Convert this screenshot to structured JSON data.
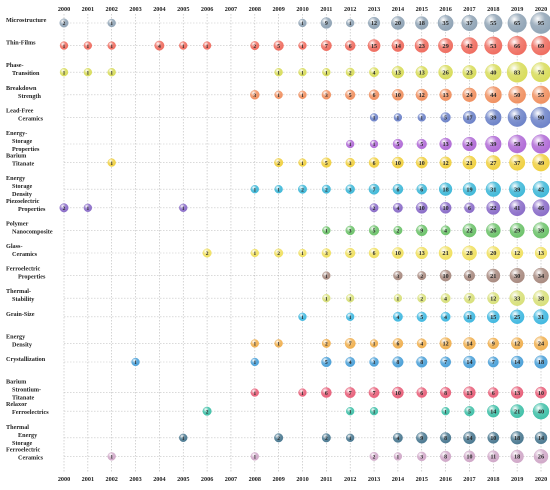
{
  "chart_data": {
    "type": "bubble-matrix",
    "title": "",
    "xlabel": "",
    "ylabel": "",
    "years": [
      "2000",
      "2001",
      "2002",
      "2003",
      "2004",
      "2005",
      "2006",
      "2007",
      "2008",
      "2009",
      "2010",
      "2011",
      "2012",
      "2013",
      "2014",
      "2015",
      "2016",
      "2017",
      "2018",
      "2019",
      "2020"
    ],
    "rows": [
      {
        "label": [
          "Microstructure"
        ],
        "color": "#8fa3b5",
        "values": {
          "2000": 2,
          "2002": 1,
          "2010": 1,
          "2011": 9,
          "2012": 1,
          "2013": 12,
          "2014": 20,
          "2015": 18,
          "2016": 35,
          "2017": 37,
          "2018": 55,
          "2019": 65,
          "2020": 95
        }
      },
      {
        "label": [
          "Thin-Films"
        ],
        "color": "#ef6c5f",
        "values": {
          "2000": 1,
          "2001": 1,
          "2002": 1,
          "2004": 4,
          "2005": 1,
          "2006": 1,
          "2008": 2,
          "2009": 5,
          "2010": 1,
          "2011": 7,
          "2012": 6,
          "2013": 15,
          "2014": 14,
          "2015": 23,
          "2016": 29,
          "2017": 42,
          "2018": 53,
          "2019": 66,
          "2020": 69
        }
      },
      {
        "label": [
          "Phase-",
          "Transition"
        ],
        "color": "#d8dc5a",
        "values": {
          "2000": 1,
          "2001": 1,
          "2002": 1,
          "2009": 1,
          "2010": 1,
          "2011": 1,
          "2012": 2,
          "2013": 4,
          "2014": 13,
          "2015": 13,
          "2016": 26,
          "2017": 23,
          "2018": 40,
          "2019": 83,
          "2020": 74
        }
      },
      {
        "label": [
          "Breakdown",
          "Strength"
        ],
        "color": "#f09060",
        "values": {
          "2008": 3,
          "2009": 1,
          "2010": 1,
          "2011": 3,
          "2012": 5,
          "2013": 6,
          "2014": 10,
          "2015": 12,
          "2016": 13,
          "2017": 24,
          "2018": 44,
          "2019": 50,
          "2020": 55
        }
      },
      {
        "label": [
          "Lead-Free",
          "Ceramics"
        ],
        "color": "#6c82c8",
        "values": {
          "2013": 1,
          "2014": 1,
          "2015": 1,
          "2016": 5,
          "2017": 17,
          "2018": 39,
          "2019": 63,
          "2020": 90
        }
      },
      {
        "label": [
          "Energy-",
          "Storage",
          "Properties"
        ],
        "color": "#b06ad6",
        "values": {
          "2012": 1,
          "2013": 1,
          "2014": 5,
          "2015": 5,
          "2016": 13,
          "2017": 24,
          "2018": 39,
          "2019": 58,
          "2020": 65
        }
      },
      {
        "label": [
          "Barium",
          "Titanate"
        ],
        "color": "#f0d040",
        "values": {
          "2002": 1,
          "2009": 2,
          "2010": 1,
          "2011": 5,
          "2012": 3,
          "2013": 6,
          "2014": 10,
          "2015": 10,
          "2016": 12,
          "2017": 21,
          "2018": 27,
          "2019": 37,
          "2020": 49
        }
      },
      {
        "label": [
          "Energy",
          "Storage",
          "Density"
        ],
        "color": "#3fb8d8",
        "values": {
          "2008": 1,
          "2009": 1,
          "2010": 2,
          "2011": 2,
          "2012": 3,
          "2013": 7,
          "2014": 6,
          "2015": 6,
          "2016": 18,
          "2017": 19,
          "2018": 31,
          "2019": 39,
          "2020": 42
        }
      },
      {
        "label": [
          "Piezoelectric",
          "Properties"
        ],
        "color": "#8a6cc8",
        "values": {
          "2000": 2,
          "2001": 1,
          "2005": 1,
          "2013": 2,
          "2014": 4,
          "2015": 10,
          "2016": 10,
          "2017": 6,
          "2018": 22,
          "2019": 41,
          "2020": 46
        }
      },
      {
        "label": [
          "Polymer",
          "Nanocomposite"
        ],
        "color": "#6cc26a",
        "values": {
          "2011": 1,
          "2012": 3,
          "2013": 5,
          "2014": 2,
          "2015": 9,
          "2016": 4,
          "2017": 22,
          "2018": 26,
          "2019": 29,
          "2020": 39
        }
      },
      {
        "label": [
          "Glass-",
          "Ceramics"
        ],
        "color": "#f0e060",
        "values": {
          "2006": 2,
          "2008": 1,
          "2009": 2,
          "2010": 1,
          "2011": 3,
          "2012": 5,
          "2013": 6,
          "2014": 10,
          "2015": 13,
          "2016": 21,
          "2017": 28,
          "2018": 20,
          "2019": 12,
          "2020": 13
        }
      },
      {
        "label": [
          "Ferroelectric",
          "Properties"
        ],
        "color": "#a88a80",
        "values": {
          "2011": 1,
          "2014": 3,
          "2015": 2,
          "2016": 10,
          "2017": 8,
          "2018": 21,
          "2019": 30,
          "2020": 34
        }
      },
      {
        "label": [
          "Thermal-",
          "Stability"
        ],
        "color": "#d8e07a",
        "values": {
          "2011": 1,
          "2012": 1,
          "2014": 1,
          "2015": 2,
          "2016": 4,
          "2017": 7,
          "2018": 12,
          "2019": 33,
          "2020": 38
        }
      },
      {
        "label": [
          "Grain-Size"
        ],
        "color": "#40b8e0",
        "values": {
          "2010": 1,
          "2012": 1,
          "2014": 4,
          "2015": 5,
          "2016": 4,
          "2017": 11,
          "2018": 15,
          "2019": 25,
          "2020": 31
        }
      },
      {
        "label": [
          "Energy",
          "Density"
        ],
        "color": "#f0b050",
        "values": {
          "2008": 1,
          "2009": 1,
          "2011": 2,
          "2012": 7,
          "2013": 1,
          "2014": 6,
          "2015": 4,
          "2016": 12,
          "2017": 14,
          "2018": 9,
          "2019": 12,
          "2020": 24
        }
      },
      {
        "label": [
          "Crystallization"
        ],
        "color": "#4aa0d8",
        "values": {
          "2003": 1,
          "2008": 1,
          "2011": 5,
          "2012": 4,
          "2013": 3,
          "2014": 8,
          "2015": 8,
          "2016": 7,
          "2017": 14,
          "2018": 7,
          "2019": 14,
          "2020": 18
        }
      },
      {
        "label": [
          "Barium",
          "Strontium-",
          "Titanate"
        ],
        "color": "#e8607a",
        "values": {
          "2008": 1,
          "2010": 1,
          "2011": 6,
          "2012": 7,
          "2013": 7,
          "2014": 10,
          "2015": 6,
          "2016": 8,
          "2017": 13,
          "2018": 6,
          "2019": 13,
          "2020": 10
        }
      },
      {
        "label": [
          "Relaxor",
          "Ferroelectrics"
        ],
        "color": "#40c0a8",
        "values": {
          "2006": 2,
          "2012": 1,
          "2013": 1,
          "2016": 1,
          "2017": 5,
          "2018": 14,
          "2019": 21,
          "2020": 40
        }
      },
      {
        "label": [
          "Thermal",
          "Energy",
          "Storage"
        ],
        "color": "#4a7890",
        "values": {
          "2005": 1,
          "2009": 2,
          "2011": 2,
          "2012": 1,
          "2014": 4,
          "2015": 9,
          "2016": 8,
          "2017": 14,
          "2018": 10,
          "2019": 18,
          "2020": 14
        }
      },
      {
        "label": [
          "Ferroelectric",
          "Ceramics"
        ],
        "color": "#d0a8c8",
        "values": {
          "2002": 1,
          "2008": 1,
          "2013": 2,
          "2014": 1,
          "2015": 3,
          "2016": 8,
          "2017": 10,
          "2018": 11,
          "2019": 18,
          "2020": 26
        }
      }
    ]
  }
}
